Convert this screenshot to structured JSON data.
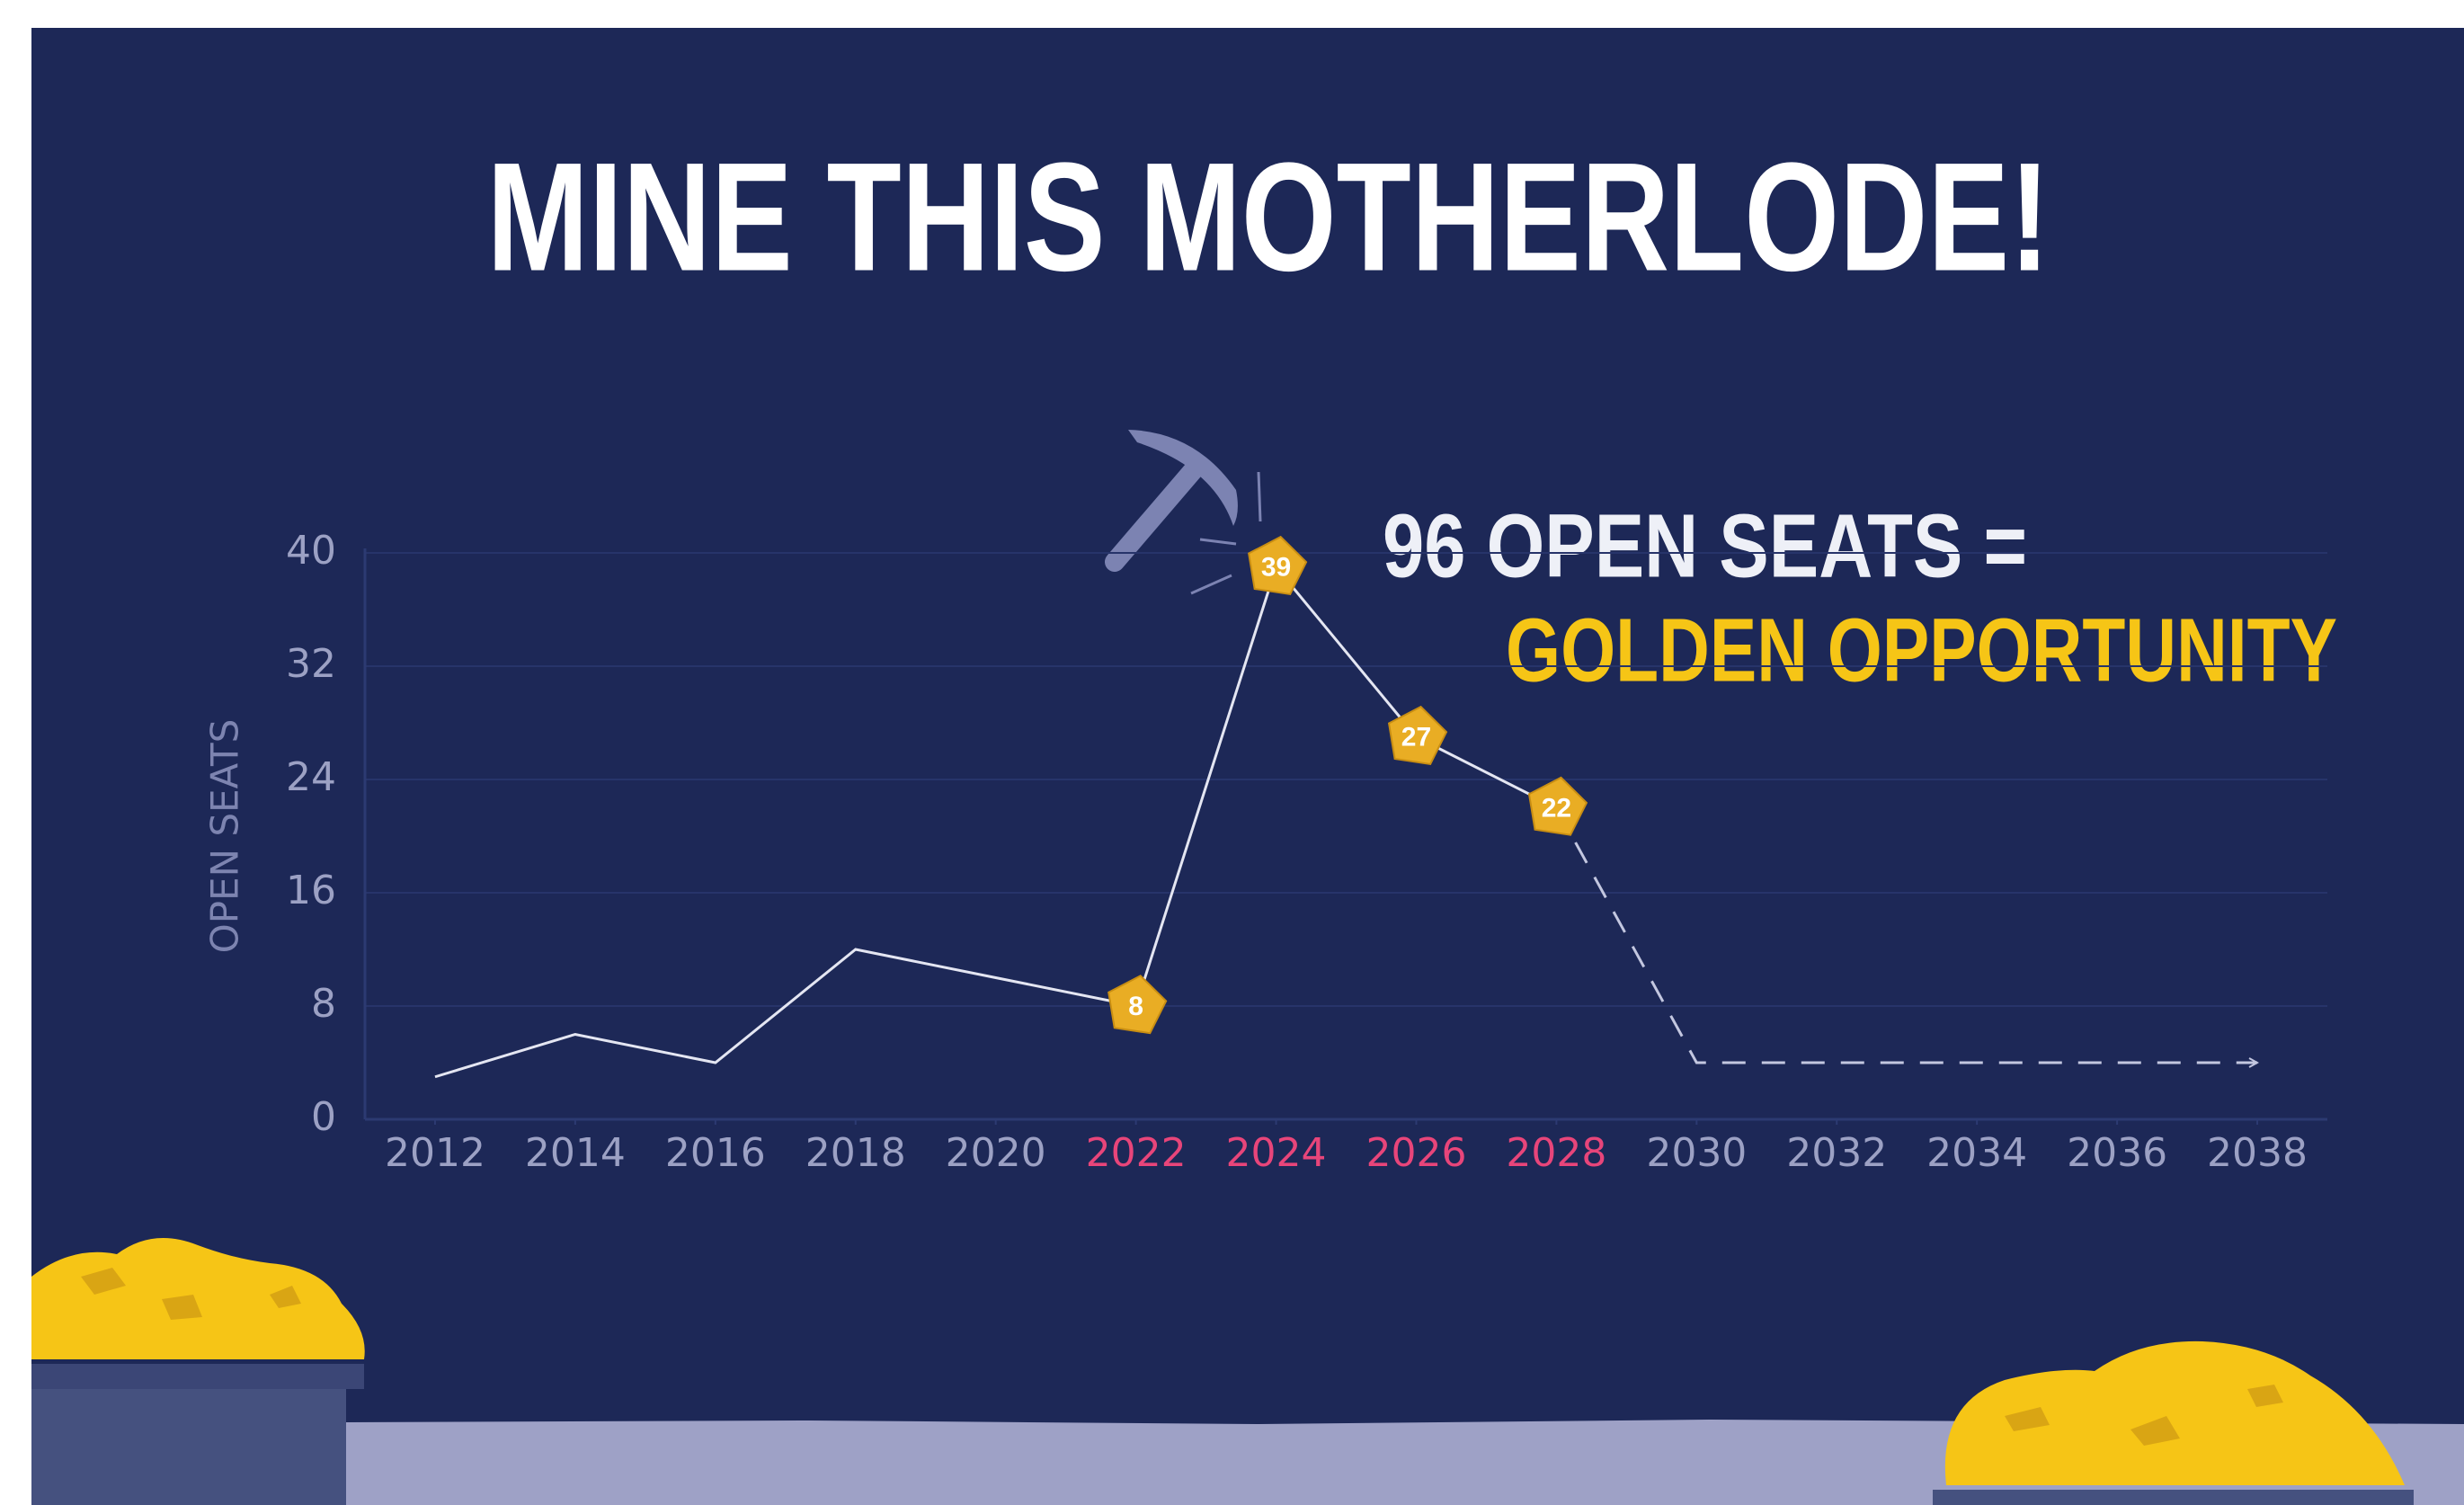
{
  "chart_data": {
    "type": "line",
    "title": "MINE THIS MOTHERLODE!",
    "annotations": [
      "96 OPEN SEATS =",
      "GOLDEN OPPORTUNITY"
    ],
    "y_label": "OPEN SEATS",
    "x": [
      2012,
      2014,
      2016,
      2018,
      2020,
      2022,
      2024,
      2026,
      2028,
      2030,
      2038
    ],
    "series": [
      {
        "color": "#e4e6f2",
        "values": [
          3,
          6,
          4,
          12,
          10,
          8,
          39,
          27,
          22,
          null,
          null
        ]
      },
      {
        "color": "#c3c7e0",
        "dashed": true,
        "values": [
          null,
          null,
          null,
          null,
          null,
          null,
          null,
          null,
          22,
          4,
          4
        ]
      }
    ],
    "xlim": [
      2011,
      2039
    ],
    "xticks": [
      2012,
      2014,
      2016,
      2018,
      2020,
      2022,
      2024,
      2026,
      2028,
      2030,
      2032,
      2034,
      2036,
      2038
    ],
    "ylim": [
      0,
      40
    ],
    "yticks": [
      0,
      8,
      16,
      24,
      32,
      40
    ],
    "grid": true,
    "highlight_range": [
      2022,
      2028
    ],
    "highlight_color": "#e8457a",
    "label_color": "#e9ad24"
  }
}
